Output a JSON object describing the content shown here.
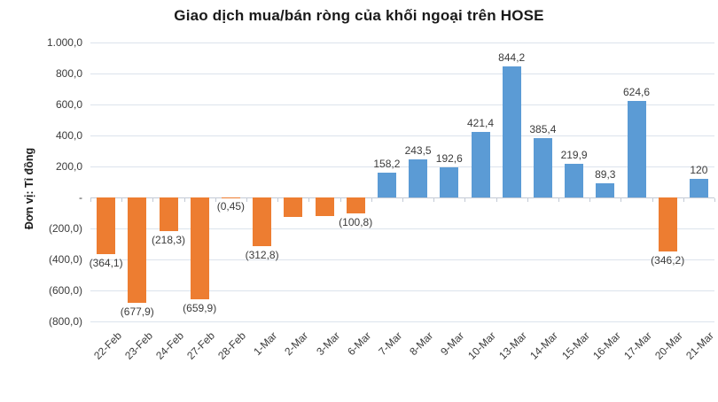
{
  "chart_data": {
    "type": "bar",
    "title": "Giao dịch mua/bán ròng của khối ngoại trên HOSE",
    "ylabel": "Đơn vị: Tỉ đồng",
    "xlabel": "",
    "ylim": [
      -800,
      1000
    ],
    "ytick_step": 200,
    "ytick_labels": [
      "1.000,0",
      "800,0",
      "600,0",
      "400,0",
      "200,0",
      "-",
      "(200,0)",
      "(400,0)",
      "(600,0)",
      "(800,0)"
    ],
    "grid": true,
    "legend": false,
    "categories": [
      "22-Feb",
      "23-Feb",
      "24-Feb",
      "27-Feb",
      "28-Feb",
      "1-Mar",
      "2-Mar",
      "3-Mar",
      "6-Mar",
      "7-Mar",
      "8-Mar",
      "9-Mar",
      "10-Mar",
      "13-Mar",
      "14-Mar",
      "15-Mar",
      "16-Mar",
      "17-Mar",
      "20-Mar",
      "21-Mar"
    ],
    "values": [
      -364.1,
      -677.9,
      -218.3,
      -659.9,
      -0.45,
      -312.8,
      -125,
      -120,
      -100.8,
      158.2,
      243.5,
      192.6,
      421.4,
      844.2,
      385.4,
      219.9,
      89.3,
      624.6,
      -346.2,
      120
    ],
    "data_labels": [
      "(364,1)",
      "(677,9)",
      "(218,3)",
      "(659,9)",
      "(0,45)",
      "(312,8)",
      "",
      "",
      "(100,8)",
      "158,2",
      "243,5",
      "192,6",
      "421,4",
      "844,2",
      "385,4",
      "219,9",
      "89,3",
      "624,6",
      "(346,2)",
      "120"
    ],
    "colors": {
      "positive_bar": "#5B9BD5",
      "negative_bar": "#ED7D31",
      "gridline": "#DCE3EC",
      "zero_axis": "#C3CAD5",
      "label_text": "#3b3b3b",
      "title_text": "#1a1a1a",
      "background": "#FFFFFF"
    }
  }
}
